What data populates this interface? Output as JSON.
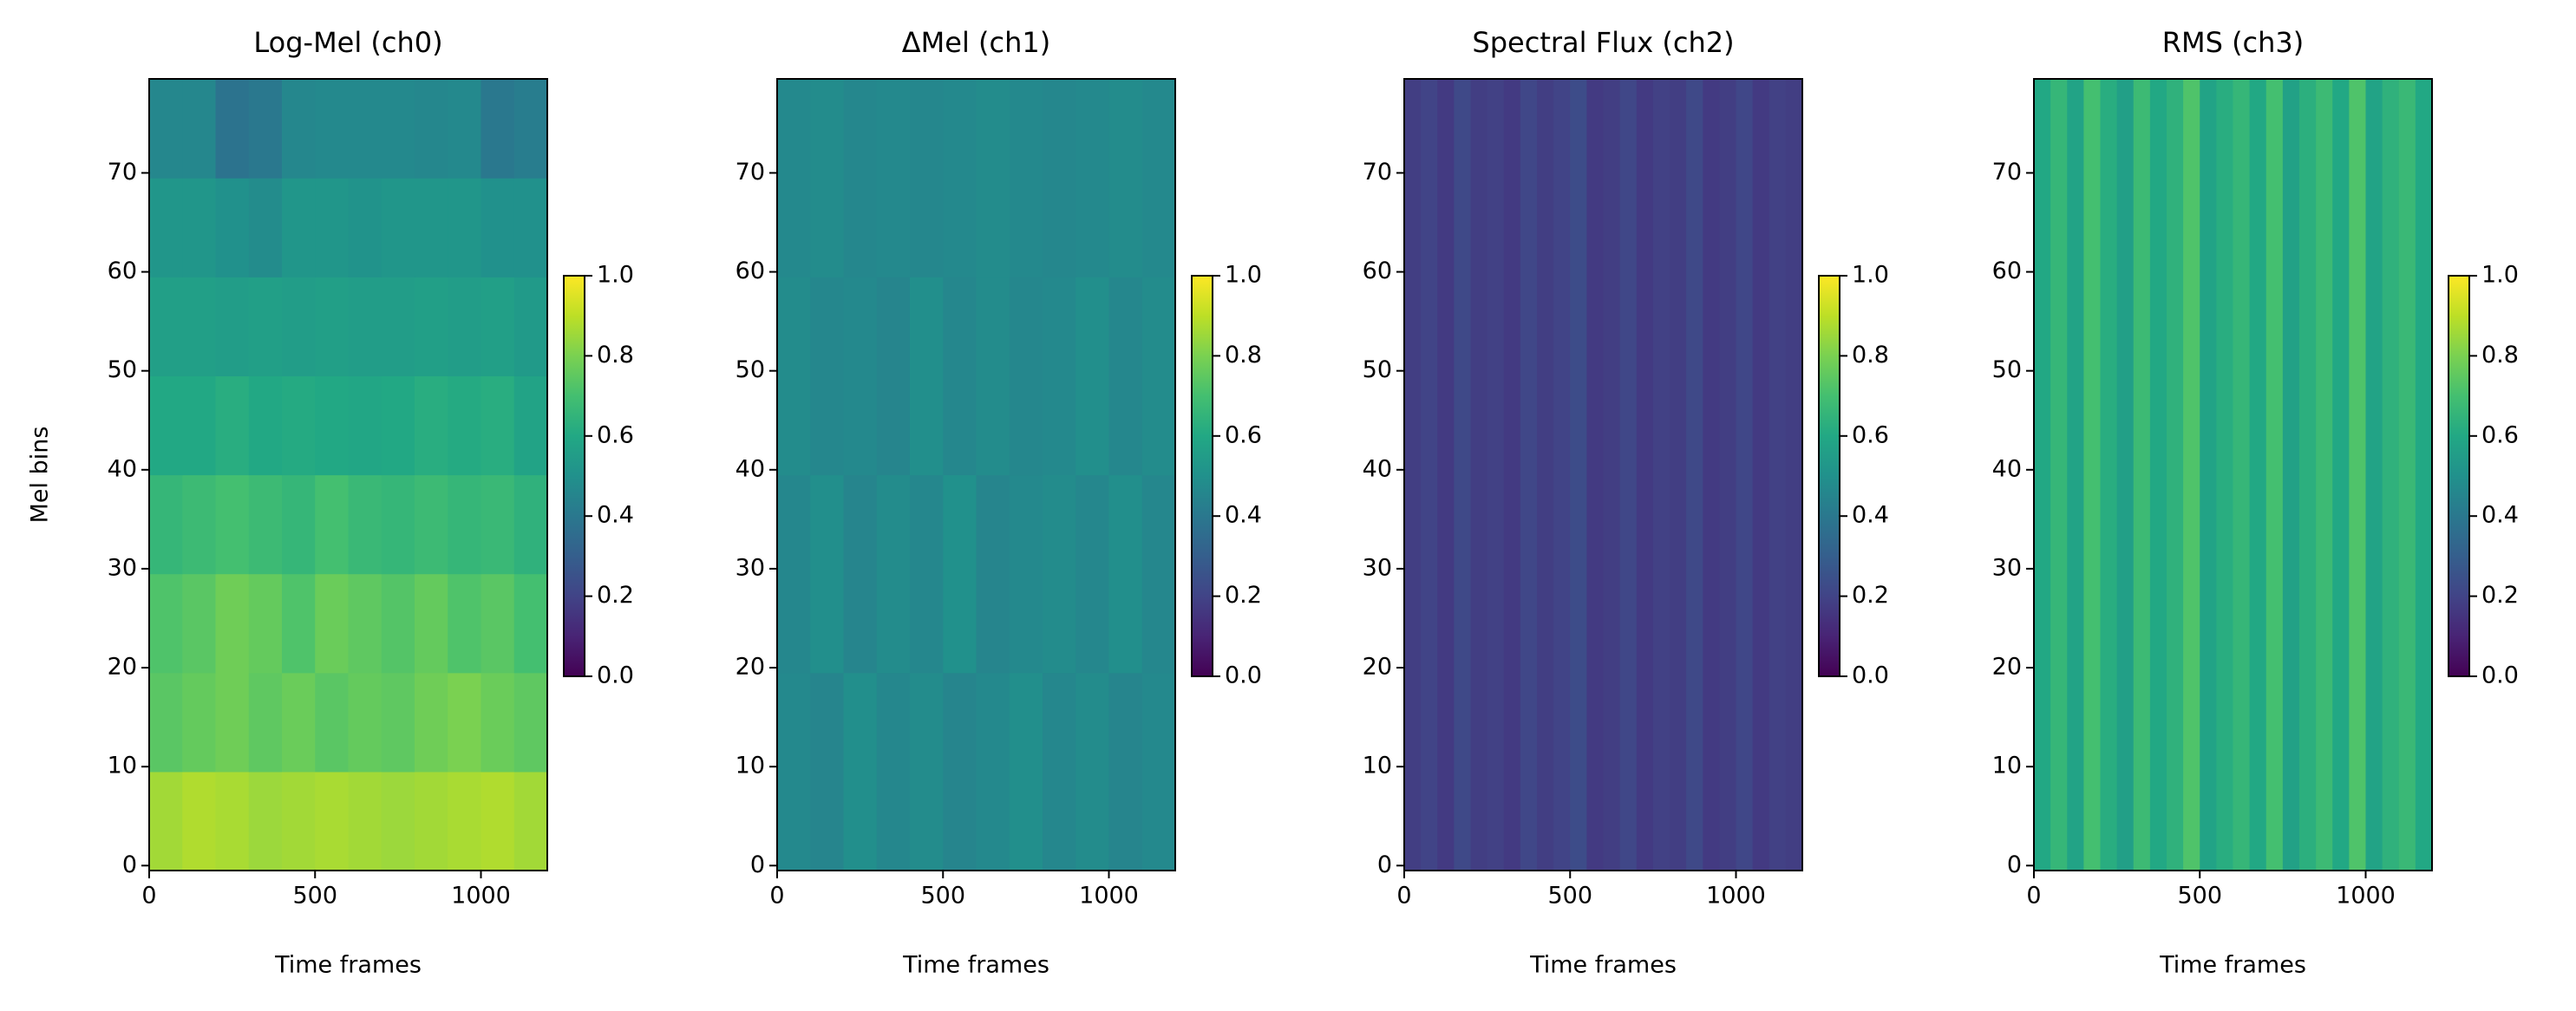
{
  "chart_data": [
    {
      "type": "heatmap",
      "title": "Log-Mel (ch0)",
      "xlabel": "Time frames",
      "ylabel": "Mel bins",
      "colormap": "viridis",
      "xlim": [
        0,
        1200
      ],
      "ylim": [
        -0.5,
        79.5
      ],
      "xticks": [
        0,
        500,
        1000
      ],
      "yticks": [
        0,
        10,
        20,
        30,
        40,
        50,
        60,
        70
      ],
      "clim": [
        0,
        1
      ],
      "cticks": [
        {
          "value": 0,
          "label": "0.0"
        },
        0.2,
        0.4,
        0.6,
        0.8,
        {
          "value": 1,
          "label": "1.0"
        }
      ],
      "z": [
        [
          0.86,
          0.88,
          0.87,
          0.85,
          0.86,
          0.87,
          0.86,
          0.85,
          0.86,
          0.87,
          0.88,
          0.86
        ],
        [
          0.74,
          0.76,
          0.78,
          0.75,
          0.77,
          0.74,
          0.76,
          0.75,
          0.78,
          0.8,
          0.77,
          0.75
        ],
        [
          0.72,
          0.74,
          0.78,
          0.76,
          0.72,
          0.77,
          0.75,
          0.73,
          0.76,
          0.72,
          0.74,
          0.7
        ],
        [
          0.66,
          0.68,
          0.7,
          0.68,
          0.66,
          0.7,
          0.67,
          0.66,
          0.68,
          0.66,
          0.67,
          0.64
        ],
        [
          0.6,
          0.6,
          0.62,
          0.6,
          0.61,
          0.6,
          0.59,
          0.6,
          0.62,
          0.61,
          0.62,
          0.58
        ],
        [
          0.56,
          0.56,
          0.55,
          0.56,
          0.55,
          0.56,
          0.55,
          0.55,
          0.56,
          0.55,
          0.56,
          0.54
        ],
        [
          0.52,
          0.52,
          0.5,
          0.48,
          0.52,
          0.52,
          0.51,
          0.52,
          0.52,
          0.52,
          0.5,
          0.5
        ],
        [
          0.46,
          0.46,
          0.38,
          0.4,
          0.46,
          0.47,
          0.47,
          0.47,
          0.46,
          0.47,
          0.4,
          0.42
        ]
      ]
    },
    {
      "type": "heatmap",
      "title": "ΔMel (ch1)",
      "xlabel": "Time frames",
      "colormap": "viridis",
      "xlim": [
        0,
        1200
      ],
      "ylim": [
        -0.5,
        79.5
      ],
      "xticks": [
        0,
        500,
        1000
      ],
      "yticks": [
        0,
        10,
        20,
        30,
        40,
        50,
        60,
        70
      ],
      "clim": [
        0,
        1
      ],
      "cticks": [
        {
          "value": 0,
          "label": "0.0"
        },
        0.2,
        0.4,
        0.6,
        0.8,
        {
          "value": 1,
          "label": "1.0"
        }
      ],
      "z": [
        [
          0.47,
          0.45,
          0.49,
          0.46,
          0.48,
          0.45,
          0.47,
          0.49,
          0.46,
          0.48,
          0.45,
          0.47
        ],
        [
          0.46,
          0.49,
          0.45,
          0.48,
          0.46,
          0.5,
          0.45,
          0.47,
          0.48,
          0.46,
          0.49,
          0.46
        ],
        [
          0.48,
          0.46,
          0.47,
          0.45,
          0.49,
          0.46,
          0.48,
          0.46,
          0.47,
          0.49,
          0.46,
          0.48
        ],
        [
          0.47,
          0.48,
          0.46,
          0.47,
          0.46,
          0.47,
          0.48,
          0.47,
          0.46,
          0.47,
          0.48,
          0.47
        ]
      ]
    },
    {
      "type": "heatmap",
      "title": "Spectral Flux (ch2)",
      "xlabel": "Time frames",
      "colormap": "viridis",
      "xlim": [
        0,
        1200
      ],
      "ylim": [
        -0.5,
        79.5
      ],
      "xticks": [
        0,
        500,
        1000
      ],
      "yticks": [
        0,
        10,
        20,
        30,
        40,
        50,
        60,
        70
      ],
      "clim": [
        0,
        1
      ],
      "cticks": [
        {
          "value": 0,
          "label": "0.0"
        },
        0.2,
        0.4,
        0.6,
        0.8,
        {
          "value": 1,
          "label": "1.0"
        }
      ],
      "z": [
        [
          0.18,
          0.2,
          0.17,
          0.22,
          0.18,
          0.19,
          0.17,
          0.21,
          0.18,
          0.2,
          0.23,
          0.17,
          0.18,
          0.21,
          0.17,
          0.19,
          0.18,
          0.22,
          0.17,
          0.18,
          0.21,
          0.17,
          0.19,
          0.18
        ]
      ]
    },
    {
      "type": "heatmap",
      "title": "RMS (ch3)",
      "xlabel": "Time frames",
      "colormap": "viridis",
      "xlim": [
        0,
        1200
      ],
      "ylim": [
        -0.5,
        79.5
      ],
      "xticks": [
        0,
        500,
        1000
      ],
      "yticks": [
        0,
        10,
        20,
        30,
        40,
        50,
        60,
        70
      ],
      "clim": [
        0,
        1
      ],
      "cticks": [
        {
          "value": 0,
          "label": "0.0"
        },
        0.2,
        0.4,
        0.6,
        0.8,
        {
          "value": 1,
          "label": "1.0"
        }
      ],
      "z": [
        [
          0.6,
          0.66,
          0.58,
          0.7,
          0.62,
          0.56,
          0.68,
          0.6,
          0.64,
          0.72,
          0.58,
          0.62,
          0.66,
          0.6,
          0.7,
          0.57,
          0.63,
          0.68,
          0.6,
          0.72,
          0.58,
          0.64,
          0.67,
          0.6
        ]
      ]
    }
  ]
}
